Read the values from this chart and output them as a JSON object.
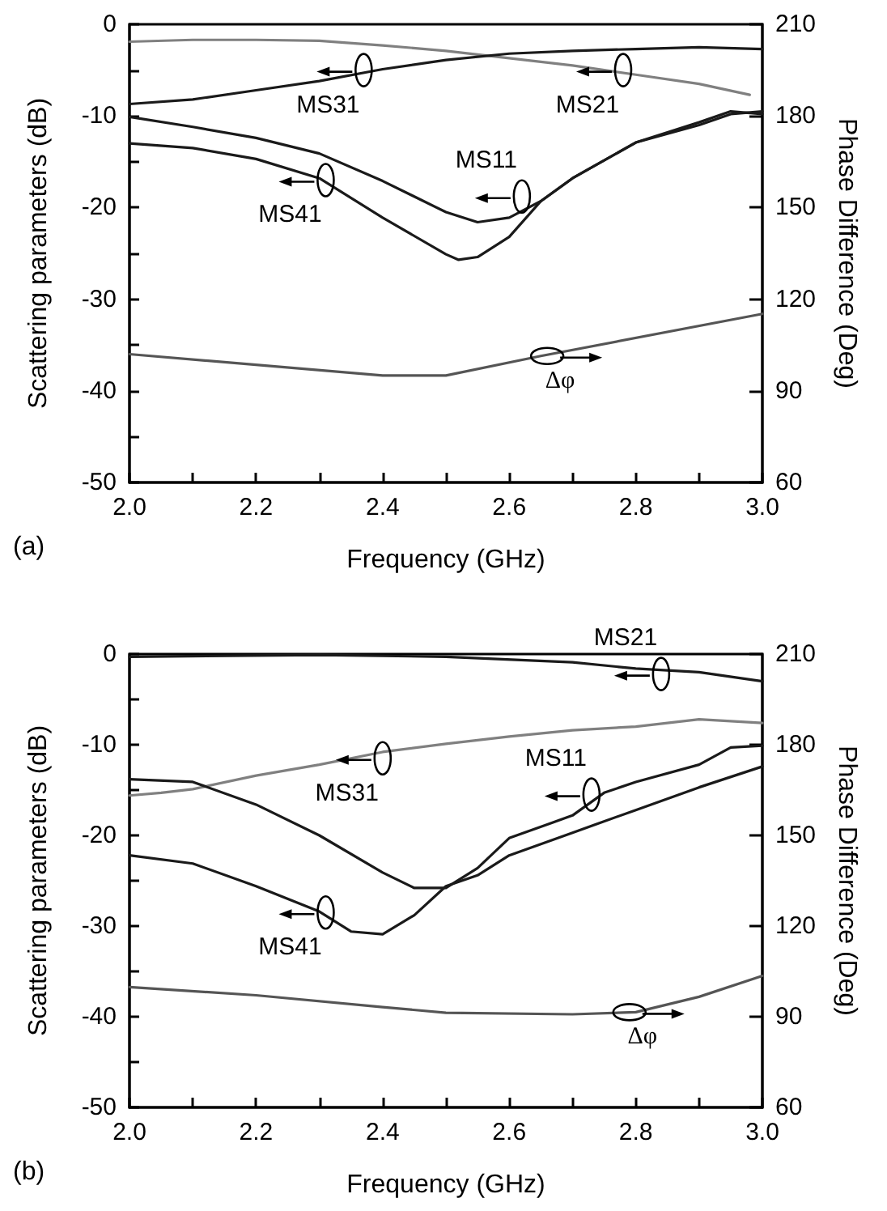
{
  "chart_data": [
    {
      "type": "line",
      "xlabel": "Frequency (GHz)",
      "ylabel": "Scattering parameters (dB)",
      "y2label": "Phase Difference (Deg)",
      "xlim": [
        2,
        3
      ],
      "xticks": [
        {
          "value": 2,
          "label": "2.0"
        },
        {
          "value": 2.1,
          "label": null
        },
        {
          "value": 2.2,
          "label": "2.2"
        },
        {
          "value": 2.3,
          "label": null
        },
        {
          "value": 2.4,
          "label": "2.4"
        },
        {
          "value": 2.5,
          "label": null
        },
        {
          "value": 2.6,
          "label": "2.6"
        },
        {
          "value": 2.7,
          "label": null
        },
        {
          "value": 2.8,
          "label": "2.8"
        },
        {
          "value": 2.9,
          "label": null
        },
        {
          "value": 3,
          "label": "3.0"
        }
      ],
      "ylim": [
        -50,
        0
      ],
      "yticks": [
        -50,
        {
          "value": -45,
          "label": null
        },
        -40,
        {
          "value": -35,
          "label": null
        },
        -30,
        {
          "value": -25,
          "label": null
        },
        -20,
        {
          "value": -15,
          "label": null
        },
        -10,
        {
          "value": -5,
          "label": null
        },
        0
      ],
      "y2lim": [
        60,
        210
      ],
      "y2ticks": [
        60,
        90,
        120,
        150,
        180,
        210
      ],
      "grid": false,
      "marker": "none",
      "series": [
        {
          "color": "#808080",
          "x": [
            2,
            2.1,
            2.2,
            2.3,
            2.4,
            2.5,
            2.6,
            2.7,
            2.8,
            2.9,
            2.98
          ],
          "values": [
            -1.9,
            -1.7,
            -1.7,
            -1.8,
            -2.3,
            -2.9,
            -3.7,
            -4.5,
            -5.5,
            -6.5,
            -7.7
          ]
        },
        {
          "color": "#1a1a1a",
          "x": [
            2,
            2.1,
            2.2,
            2.3,
            2.4,
            2.5,
            2.6,
            2.7,
            2.8,
            2.9,
            3
          ],
          "values": [
            -8.7,
            -8.2,
            -7.2,
            -6.2,
            -4.9,
            -3.9,
            -3.2,
            -2.9,
            -2.7,
            -2.5,
            -2.7
          ]
        },
        {
          "color": "#1a1a1a",
          "x": [
            2,
            2.1,
            2.2,
            2.3,
            2.4,
            2.5,
            2.55,
            2.6,
            2.65,
            2.7,
            2.8,
            2.9,
            2.95,
            3
          ],
          "values": [
            -10.1,
            -11.2,
            -12.4,
            -14.1,
            -17.1,
            -20.5,
            -21.6,
            -21.1,
            -19.3,
            -16.8,
            -12.9,
            -11,
            -9.8,
            -9.5
          ]
        },
        {
          "color": "#1a1a1a",
          "x": [
            2,
            2.1,
            2.2,
            2.3,
            2.4,
            2.5,
            2.52,
            2.55,
            2.6,
            2.65,
            2.7,
            2.8,
            2.9,
            2.95,
            3
          ],
          "values": [
            -13,
            -13.5,
            -14.7,
            -16.8,
            -21.1,
            -25.1,
            -25.7,
            -25.4,
            -23.2,
            -19.3,
            -16.8,
            -12.9,
            -10.7,
            -9.5,
            -9.8
          ]
        },
        {
          "color": "#555555",
          "axis": "y2",
          "x": [
            2,
            2.4,
            2.5,
            2.65,
            3
          ],
          "values": [
            102,
            95,
            95,
            101.4,
            115.2
          ]
        }
      ],
      "annotations": [
        {
          "text": "MS31",
          "x": 2.37,
          "y": -5
        },
        {
          "text": "MS21",
          "x": 2.78,
          "y": -5
        },
        {
          "text": "MS11",
          "x": 2.62,
          "y": -18.8
        },
        {
          "text": "MS41",
          "x": 2.31,
          "y": -17
        },
        {
          "text": "Δφ",
          "x": 2.66,
          "y": -36.2
        },
        "(a)"
      ]
    },
    {
      "type": "line",
      "xlabel": "Frequency (GHz)",
      "ylabel": "Scattering parameters (dB)",
      "y2label": "Phase Difference (Deg)",
      "xlim": [
        2,
        3
      ],
      "xticks": [
        {
          "value": 2,
          "label": "2.0"
        },
        {
          "value": 2.1,
          "label": null
        },
        {
          "value": 2.2,
          "label": "2.2"
        },
        {
          "value": 2.3,
          "label": null
        },
        {
          "value": 2.4,
          "label": "2.4"
        },
        {
          "value": 2.5,
          "label": null
        },
        {
          "value": 2.6,
          "label": "2.6"
        },
        {
          "value": 2.7,
          "label": null
        },
        {
          "value": 2.8,
          "label": "2.8"
        },
        {
          "value": 2.9,
          "label": null
        },
        {
          "value": 3,
          "label": "3.0"
        }
      ],
      "ylim": [
        -50,
        0
      ],
      "yticks": [
        -50,
        {
          "value": -45,
          "label": null
        },
        -40,
        {
          "value": -35,
          "label": null
        },
        -30,
        {
          "value": -25,
          "label": null
        },
        -20,
        {
          "value": -15,
          "label": null
        },
        -10,
        {
          "value": -5,
          "label": null
        },
        0
      ],
      "y2lim": [
        60,
        210
      ],
      "y2ticks": [
        60,
        90,
        120,
        150,
        180,
        210
      ],
      "grid": false,
      "marker": "none",
      "series": [
        {
          "color": "#1a1a1a",
          "x": [
            2,
            2.3,
            2.5,
            2.7,
            2.8,
            2.9,
            3
          ],
          "values": [
            -0.3,
            -0.1,
            -0.3,
            -0.9,
            -1.6,
            -2,
            -3
          ]
        },
        {
          "color": "#808080",
          "x": [
            2,
            2.05,
            2.1,
            2.2,
            2.3,
            2.4,
            2.5,
            2.6,
            2.7,
            2.8,
            2.9,
            3
          ],
          "values": [
            -15.6,
            -15.3,
            -14.9,
            -13.4,
            -12.2,
            -10.8,
            -9.9,
            -9.1,
            -8.4,
            -8,
            -7.2,
            -7.6
          ]
        },
        {
          "color": "#1a1a1a",
          "x": [
            2,
            2.1,
            2.2,
            2.3,
            2.4,
            2.45,
            2.5,
            2.55,
            2.6,
            2.7,
            2.75,
            2.8,
            2.9,
            2.95,
            3
          ],
          "values": [
            -13.8,
            -14.1,
            -16.6,
            -20,
            -24.1,
            -25.8,
            -25.8,
            -23.6,
            -20.3,
            -17.8,
            -15.3,
            -14.1,
            -12.2,
            -10.3,
            -10.1
          ]
        },
        {
          "color": "#1a1a1a",
          "x": [
            2,
            2.1,
            2.2,
            2.3,
            2.35,
            2.4,
            2.45,
            2.5,
            2.55,
            2.6,
            2.7,
            2.8,
            2.9,
            3
          ],
          "values": [
            -22.2,
            -23.1,
            -25.6,
            -28.4,
            -30.6,
            -30.9,
            -28.8,
            -25.6,
            -24.4,
            -22.2,
            -19.7,
            -17.2,
            -14.7,
            -12.4
          ]
        },
        {
          "color": "#555555",
          "axis": "y2",
          "x": [
            2,
            2.2,
            2.4,
            2.5,
            2.7,
            2.8,
            2.9,
            3
          ],
          "values": [
            99.8,
            97.1,
            93.2,
            91.3,
            90.8,
            91.5,
            96.6,
            103.5
          ]
        }
      ],
      "annotations": [
        {
          "text": "MS21",
          "x": 2.84,
          "y": -2.2
        },
        {
          "text": "MS31",
          "x": 2.4,
          "y": -11.5
        },
        {
          "text": "MS11",
          "x": 2.73,
          "y": -15.5
        },
        {
          "text": "MS41",
          "x": 2.31,
          "y": -28.5
        },
        {
          "text": "Δφ",
          "x": 2.79,
          "y": -39.5
        },
        "(b)"
      ]
    }
  ]
}
